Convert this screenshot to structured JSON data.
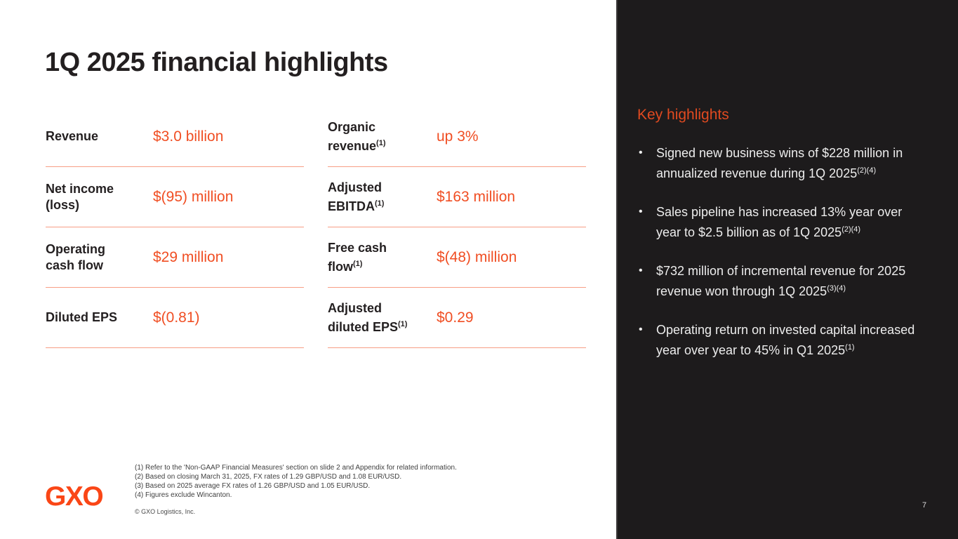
{
  "slide": {
    "title": "1Q 2025 financial highlights",
    "logo_text": "GXO",
    "page_number": "7",
    "copyright": "© GXO Logistics, Inc."
  },
  "colors": {
    "accent_orange": "#F04E23",
    "logo_orange": "#FA4616",
    "panel_background": "#1D1B1C",
    "heading_dark": "#231F20"
  },
  "metrics": {
    "left": [
      {
        "label_lines": [
          "Revenue"
        ],
        "sup": "",
        "value": "$3.0 billion"
      },
      {
        "label_lines": [
          "Net income",
          "(loss)"
        ],
        "sup": "",
        "value": "$(95) million"
      },
      {
        "label_lines": [
          "Operating",
          "cash flow"
        ],
        "sup": "",
        "value": "$29 million"
      },
      {
        "label_lines": [
          "Diluted EPS"
        ],
        "sup": "",
        "value": "$(0.81)"
      }
    ],
    "right": [
      {
        "label_lines": [
          "Organic",
          "revenue"
        ],
        "sup": "(1)",
        "value": "up 3%"
      },
      {
        "label_lines": [
          "Adjusted",
          "EBITDA"
        ],
        "sup": "(1)",
        "value": "$163 million"
      },
      {
        "label_lines": [
          "Free cash",
          "flow"
        ],
        "sup": "(1)",
        "value": "$(48) million"
      },
      {
        "label_lines": [
          "Adjusted",
          "diluted EPS"
        ],
        "sup": "(1)",
        "value": "$0.29"
      }
    ]
  },
  "highlights": {
    "title": "Key highlights",
    "items": [
      {
        "text": "Signed new business wins of $228 million in annualized revenue during 1Q 2025",
        "sup": "(2)(4)"
      },
      {
        "text": "Sales pipeline has increased 13% year over year to $2.5 billion as of 1Q 2025",
        "sup": "(2)(4)"
      },
      {
        "text": "$732 million of incremental revenue for 2025 revenue won through 1Q 2025",
        "sup": "(3)(4)"
      },
      {
        "text": "Operating return on invested capital increased year over year to 45% in Q1 2025",
        "sup": "(1)"
      }
    ]
  },
  "footnotes": [
    "(1) Refer to the 'Non-GAAP Financial Measures' section on slide 2 and Appendix for related information.",
    "(2) Based on closing March 31, 2025, FX rates of 1.29 GBP/USD and 1.08 EUR/USD.",
    "(3) Based on 2025 average FX rates of 1.26 GBP/USD and 1.05 EUR/USD.",
    "(4) Figures exclude Wincanton."
  ]
}
